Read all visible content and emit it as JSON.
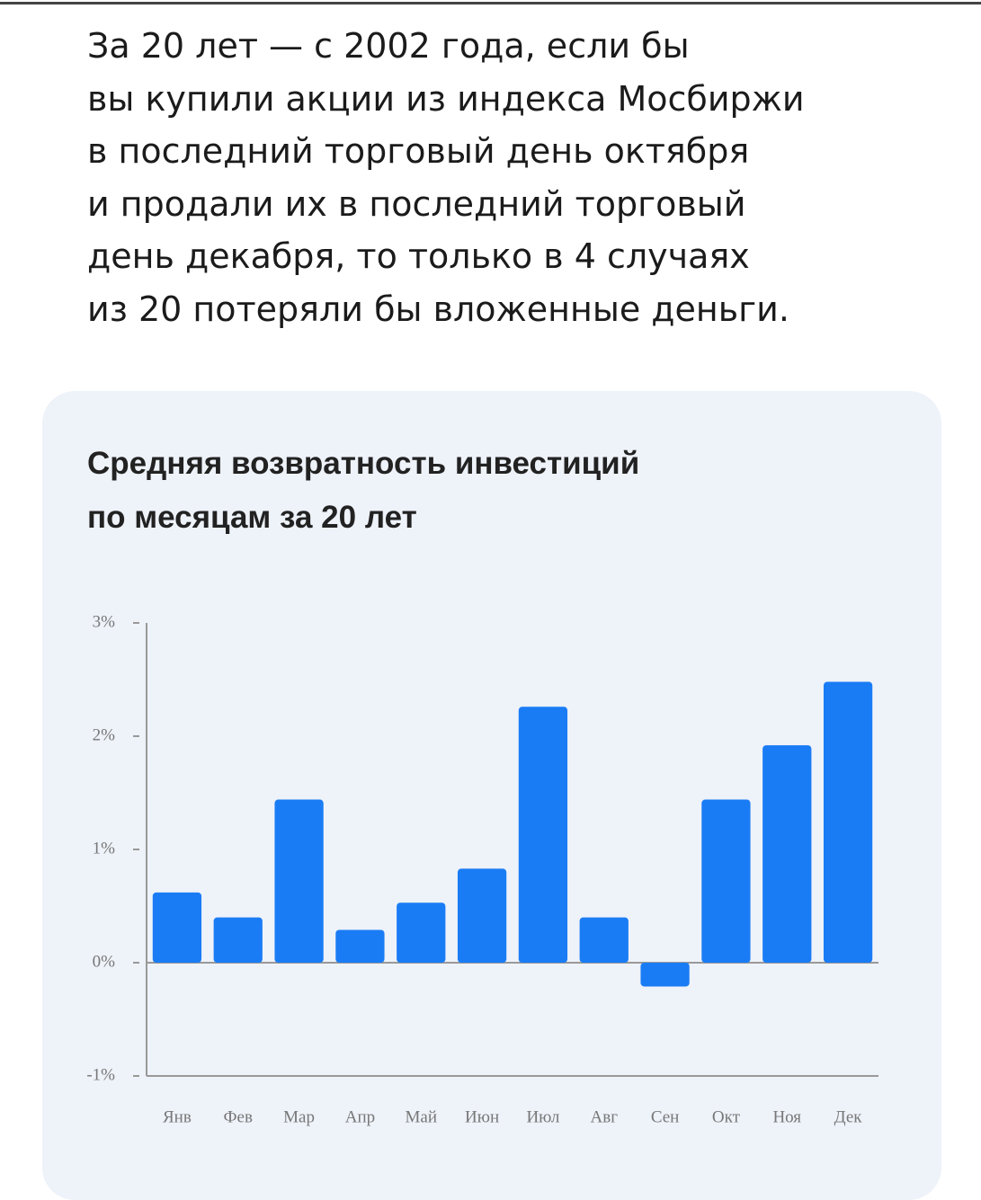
{
  "article": {
    "lines": [
      "За 20 лет — с 2002 года, если бы",
      "вы купили акции из индекса Мосбиржи",
      "в последний торговый день октября",
      "и продали их в последний торговый",
      "день декабря, то только в 4 случаях",
      "из 20 потеряли бы вложенные деньги."
    ]
  },
  "chart_data": {
    "type": "bar",
    "title_lines": [
      "Средняя возвратность инвестиций",
      "по месяцам за 20 лет"
    ],
    "categories": [
      "Янв",
      "Фев",
      "Мар",
      "Апр",
      "Май",
      "Июн",
      "Июл",
      "Авг",
      "Сен",
      "Окт",
      "Ноя",
      "Дек"
    ],
    "values": [
      0.62,
      0.4,
      1.44,
      0.29,
      0.53,
      0.83,
      2.26,
      0.4,
      -0.21,
      1.44,
      1.92,
      2.48
    ],
    "color": "#1a7cf5",
    "ylim": [
      -1,
      3
    ],
    "yticks": [
      {
        "value": -1,
        "label": "-1%"
      },
      {
        "value": 0,
        "label": "0%"
      },
      {
        "value": 1,
        "label": "1%"
      },
      {
        "value": 2,
        "label": "2%"
      },
      {
        "value": 3,
        "label": "3%"
      }
    ]
  }
}
